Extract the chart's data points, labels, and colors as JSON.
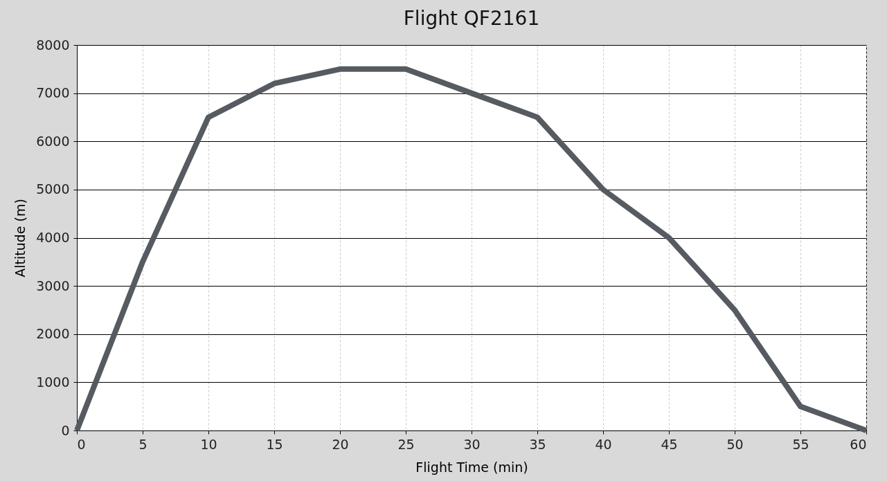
{
  "chart_data": {
    "type": "line",
    "title": "Flight QF2161",
    "xlabel": "Flight Time (min)",
    "ylabel": "Altitude (m)",
    "x": [
      0,
      5,
      10,
      15,
      20,
      25,
      30,
      35,
      40,
      45,
      50,
      55,
      60
    ],
    "series": [
      {
        "color": "#565b61",
        "values": [
          0,
          3500,
          6500,
          7200,
          7500,
          7500,
          7000,
          6500,
          5000,
          4000,
          2500,
          500,
          0
        ]
      }
    ],
    "xlim": [
      0,
      60
    ],
    "xticks": [
      0,
      5,
      10,
      15,
      20,
      25,
      30,
      35,
      40,
      45,
      50,
      55,
      60
    ],
    "ylim": [
      0,
      8000
    ],
    "yticks": [
      0,
      1000,
      2000,
      3000,
      4000,
      5000,
      6000,
      7000,
      8000
    ],
    "grid": true,
    "marker": "none",
    "line_style": "solid"
  }
}
